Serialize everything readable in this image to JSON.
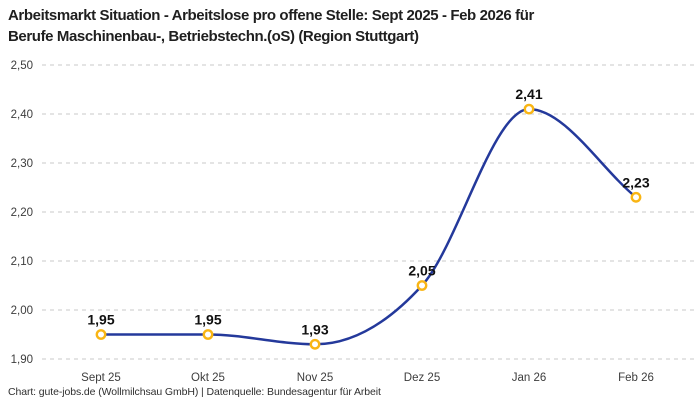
{
  "header": {
    "title_lines": [
      "Arbeitsmarkt Situation - Arbeitslose pro offene Stelle: Sept 2025 - Feb 2026 für",
      "Berufe Maschinenbau-, Betriebstechn.(oS) (Region Stuttgart)"
    ]
  },
  "footer": {
    "credit": "Chart: gute-jobs.de (Wollmilchsau GmbH) | Datenquelle: Bundesagentur für Arbeit"
  },
  "chart_data": {
    "type": "line",
    "title": "Arbeitsmarkt Situation - Arbeitslose pro offene Stelle: Sept 2025 - Feb 2026 für Berufe Maschinenbau-, Betriebstechn.(oS) (Region Stuttgart)",
    "categories": [
      "Sept 25",
      "Okt 25",
      "Nov 25",
      "Dez 25",
      "Jan 26",
      "Feb 26"
    ],
    "values": [
      1.95,
      1.95,
      1.93,
      2.05,
      2.41,
      2.23
    ],
    "point_labels": [
      "1,95",
      "1,95",
      "1,93",
      "2,05",
      "2,41",
      "2,23"
    ],
    "y_ticks": [
      {
        "value": 2.5,
        "label": "2,50"
      },
      {
        "value": 2.4,
        "label": "2,40"
      },
      {
        "value": 2.3,
        "label": "2,30"
      },
      {
        "value": 2.2,
        "label": "2,20"
      },
      {
        "value": 2.1,
        "label": "2,10"
      },
      {
        "value": 2.0,
        "label": "2,00"
      },
      {
        "value": 1.9,
        "label": "1,90"
      }
    ],
    "ylim": [
      1.9,
      2.5
    ],
    "xlabel": "",
    "ylabel": "",
    "legend": "none",
    "grid": "horizontal-dashed",
    "curve": "smooth-monotone",
    "colors": {
      "line": "#24399b",
      "marker_ring": "#f9b514",
      "marker_fill": "#ffffff",
      "grid": "#c9c9c9",
      "axis_text": "#3d3d3d",
      "value_text": "#111111",
      "title_text": "#1f1f1f",
      "background": "#ffffff"
    }
  }
}
